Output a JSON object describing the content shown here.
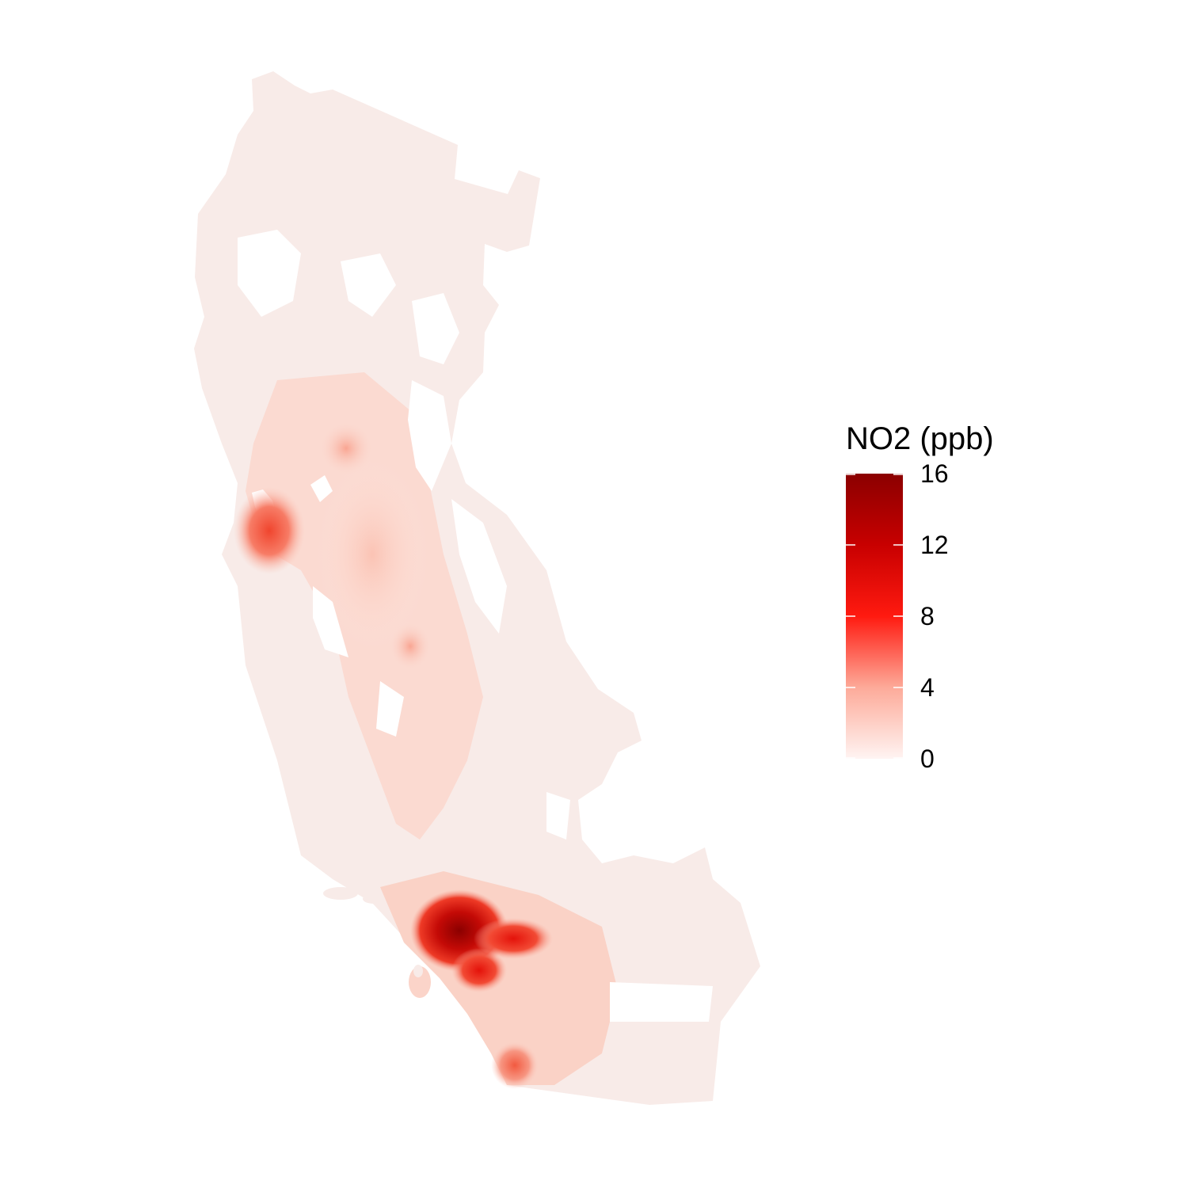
{
  "map": {
    "region": "California",
    "fill_low": "#f7f1f0",
    "fill_mid": "#ff1a10",
    "fill_high": "#8b0000",
    "hotspots": [
      {
        "area": "Los Angeles",
        "value": 15
      },
      {
        "area": "Inland Empire",
        "value": 10
      },
      {
        "area": "San Francisco Bay Area",
        "value": 6
      },
      {
        "area": "San Diego",
        "value": 5
      },
      {
        "area": "Sacramento",
        "value": 3
      },
      {
        "area": "Fresno",
        "value": 3
      }
    ]
  },
  "legend": {
    "title": "NO2 (ppb)",
    "min": 0,
    "max": 16,
    "ticks": [
      {
        "value": 0,
        "label": "0"
      },
      {
        "value": 4,
        "label": "4"
      },
      {
        "value": 8,
        "label": "8"
      },
      {
        "value": 12,
        "label": "12"
      },
      {
        "value": 16,
        "label": "16"
      }
    ],
    "colors": [
      {
        "stop": 0,
        "color": "#fff4f2"
      },
      {
        "stop": 0.25,
        "color": "#fdaa99"
      },
      {
        "stop": 0.5,
        "color": "#ff1a10"
      },
      {
        "stop": 0.75,
        "color": "#c80000"
      },
      {
        "stop": 1,
        "color": "#8b0000"
      }
    ]
  }
}
